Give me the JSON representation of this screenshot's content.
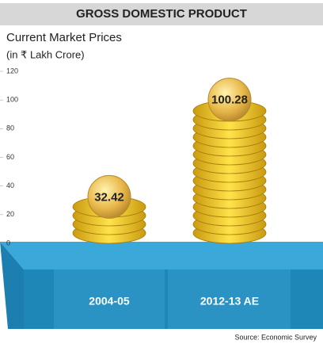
{
  "chart_data": {
    "type": "bar",
    "title": "GROSS DOMESTIC PRODUCT",
    "subtitle": "Current Market Prices",
    "y_label": "(in ₹ Lakh Crore)",
    "categories": [
      "2004-05",
      "2012-13 AE"
    ],
    "values": [
      32.42,
      100.28
    ],
    "color": "#f2c21a",
    "ylim": [
      0,
      120
    ],
    "yticks": [
      0,
      20,
      40,
      60,
      80,
      100,
      120
    ],
    "grid": false,
    "source": "Source: Economic Survey"
  }
}
